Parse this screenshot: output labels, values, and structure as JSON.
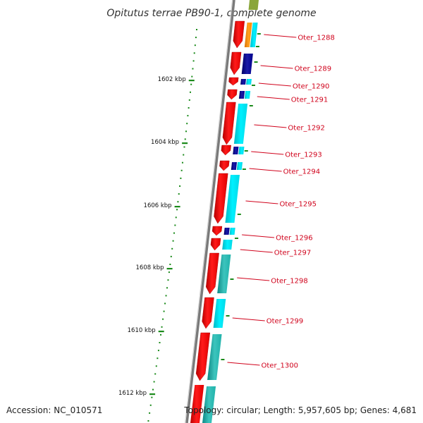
{
  "title": "Opitutus terrae PB90-1, complete genome",
  "accession": "Accession: NC_010571",
  "topology": "Topology: circular; Length: 5,957,605 bp; Genes: 4,681",
  "scale_labels": [
    "1602 kbp",
    "1604 kbp",
    "1606 kbp",
    "1608 kbp",
    "1610 kbp",
    "1612 kbp"
  ],
  "genes": [
    {
      "label": "Oter_1288",
      "colors": [
        "#ff8c00",
        "#00e5ee"
      ]
    },
    {
      "label": "Oter_1289",
      "colors": [
        "#00008b"
      ]
    },
    {
      "label": "Oter_1290",
      "colors": [
        "#00008b",
        "#00e5ee"
      ]
    },
    {
      "label": "Oter_1291",
      "colors": [
        "#00008b",
        "#00e5ee"
      ]
    },
    {
      "label": "Oter_1292",
      "colors": [
        "#00e5ee"
      ]
    },
    {
      "label": "Oter_1293",
      "colors": [
        "#00008b",
        "#00e5ee"
      ]
    },
    {
      "label": "Oter_1294",
      "colors": [
        "#00008b",
        "#00e5ee"
      ]
    },
    {
      "label": "Oter_1295",
      "colors": [
        "#00e5ee"
      ]
    },
    {
      "label": "Oter_1296",
      "colors": [
        "#00008b",
        "#00e5ee"
      ]
    },
    {
      "label": "Oter_1297",
      "colors": [
        "#00e5ee"
      ]
    },
    {
      "label": "Oter_1298",
      "colors": [
        "#20b2aa"
      ]
    },
    {
      "label": "Oter_1299",
      "colors": [
        "#00e5ee"
      ]
    },
    {
      "label": "Oter_1300",
      "colors": [
        "#20b2aa"
      ]
    }
  ],
  "colors": {
    "gene_arrow": "#ff0000",
    "backbone": "#888888",
    "tick": "#1a8a1a",
    "label": "#d0021b",
    "olive_cog": "#8aa63a"
  }
}
